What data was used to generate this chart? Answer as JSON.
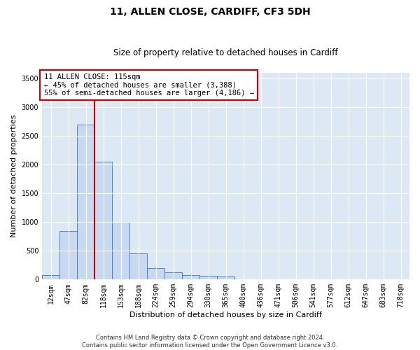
{
  "title": "11, ALLEN CLOSE, CARDIFF, CF3 5DH",
  "subtitle": "Size of property relative to detached houses in Cardiff",
  "xlabel": "Distribution of detached houses by size in Cardiff",
  "ylabel": "Number of detached properties",
  "bar_labels": [
    "12sqm",
    "47sqm",
    "82sqm",
    "118sqm",
    "153sqm",
    "188sqm",
    "224sqm",
    "259sqm",
    "294sqm",
    "330sqm",
    "365sqm",
    "400sqm",
    "436sqm",
    "471sqm",
    "506sqm",
    "541sqm",
    "577sqm",
    "612sqm",
    "647sqm",
    "683sqm",
    "718sqm"
  ],
  "bar_values": [
    80,
    850,
    2700,
    2050,
    1000,
    450,
    200,
    130,
    75,
    60,
    50,
    10,
    5,
    3,
    2,
    1,
    1,
    0,
    0,
    0,
    0
  ],
  "bar_color": "#c6d9f0",
  "bar_edge_color": "#4472c4",
  "vline_x_index": 3,
  "vline_color": "#cc0000",
  "annotation_text": "11 ALLEN CLOSE: 115sqm\n← 45% of detached houses are smaller (3,388)\n55% of semi-detached houses are larger (4,186) →",
  "annotation_box_color": "#ffffff",
  "annotation_box_edge": "#cc0000",
  "background_color": "#ffffff",
  "plot_bg_color": "#dce9f5",
  "grid_color": "#ffffff",
  "ylim": [
    0,
    3600
  ],
  "yticks": [
    0,
    500,
    1000,
    1500,
    2000,
    2500,
    3000,
    3500
  ],
  "footer_line1": "Contains HM Land Registry data © Crown copyright and database right 2024.",
  "footer_line2": "Contains public sector information licensed under the Open Government Licence v3.0.",
  "title_fontsize": 10,
  "subtitle_fontsize": 8.5,
  "annotation_fontsize": 7.5,
  "tick_fontsize": 7,
  "ylabel_fontsize": 8,
  "xlabel_fontsize": 8,
  "footer_fontsize": 6
}
